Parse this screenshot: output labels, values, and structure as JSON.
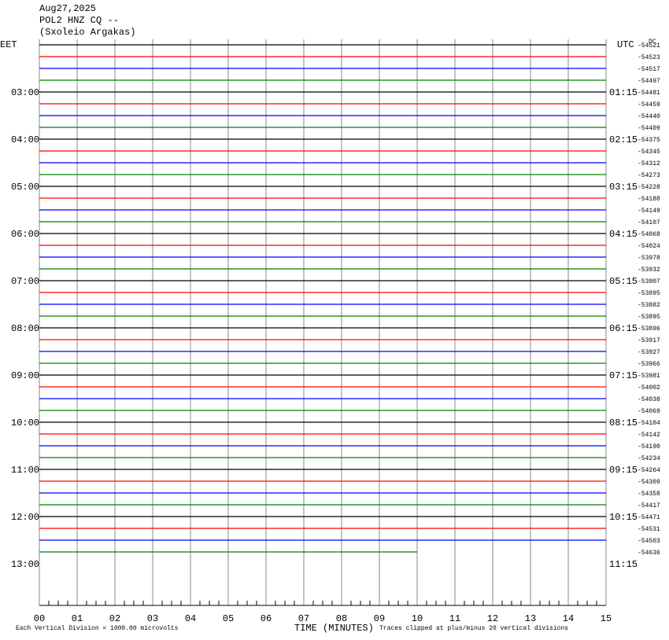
{
  "header": {
    "date": "Aug27,2025",
    "station": "POL2 HNZ CQ --",
    "location": "(Sxoleio Argakas)"
  },
  "left_zone": "EET",
  "right_zone": "UTC",
  "dc_label": "DC",
  "left_labels": [
    "03:00",
    "04:00",
    "05:00",
    "06:00",
    "07:00",
    "08:00",
    "09:00",
    "10:00",
    "11:00",
    "12:00",
    "13:00"
  ],
  "right_labels": [
    "01:15",
    "02:15",
    "03:15",
    "04:15",
    "05:15",
    "06:15",
    "07:15",
    "08:15",
    "09:15",
    "10:15",
    "11:15"
  ],
  "trace_offsets": [
    -54521,
    -54523,
    -54517,
    -54497,
    -54481,
    -54459,
    -54440,
    -54409,
    -54375,
    -54345,
    -54312,
    -54273,
    -54228,
    -54188,
    -54149,
    -54107,
    -54068,
    -54024,
    -53978,
    -53932,
    -53907,
    -53895,
    -53882,
    -53895,
    -53896,
    -53917,
    -53927,
    -53966,
    -53981,
    -54002,
    -54038,
    -54069,
    -54104,
    -54142,
    -54190,
    -54234,
    -54264,
    -54309,
    -54358,
    -54417,
    -54471,
    -54531,
    -54503,
    -54636
  ],
  "trace_colors": [
    "#000000",
    "#ff0000",
    "#0000ff",
    "#008000"
  ],
  "x_ticks": [
    "00",
    "01",
    "02",
    "03",
    "04",
    "05",
    "06",
    "07",
    "08",
    "09",
    "10",
    "11",
    "12",
    "13",
    "14",
    "15"
  ],
  "footer": {
    "scale": "Each Vertical Division = 1000.00 microvolts",
    "x_title": "TIME (MINUTES)",
    "clip": "Traces clipped at plus/minus 20 vertical divisions"
  }
}
